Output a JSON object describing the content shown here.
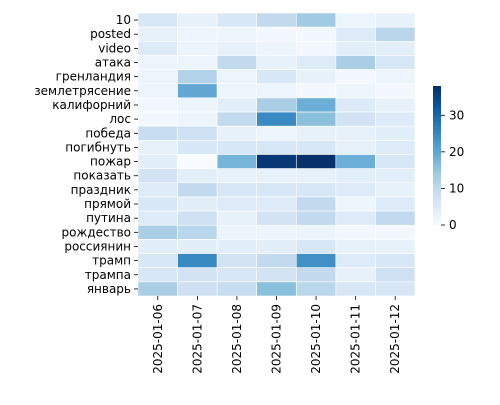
{
  "chart_data": {
    "type": "heatmap",
    "title": "",
    "xlabel": "",
    "ylabel": "",
    "x_categories": [
      "2025-01-06",
      "2025-01-07",
      "2025-01-08",
      "2025-01-09",
      "2025-01-10",
      "2025-01-11",
      "2025-01-12"
    ],
    "y_categories": [
      "10",
      "posted",
      "video",
      "атака",
      "гренландия",
      "землетрясение",
      "калифорний",
      "лос",
      "победа",
      "погибнуть",
      "пожар",
      "показать",
      "праздник",
      "прямой",
      "путина",
      "рождество",
      "россиянин",
      "трамп",
      "трампа",
      "январь"
    ],
    "values": [
      [
        6,
        3,
        6,
        10,
        14,
        2,
        3
      ],
      [
        3,
        2,
        2,
        1,
        1,
        5,
        11
      ],
      [
        5,
        2,
        3,
        2,
        1,
        4,
        4
      ],
      [
        2,
        2,
        10,
        3,
        5,
        13,
        6
      ],
      [
        2,
        12,
        2,
        6,
        3,
        1,
        2
      ],
      [
        2,
        20,
        2,
        2,
        1,
        2,
        1
      ],
      [
        1,
        2,
        4,
        13,
        19,
        5,
        3
      ],
      [
        1,
        2,
        10,
        25,
        16,
        7,
        5
      ],
      [
        9,
        8,
        3,
        2,
        3,
        3,
        4
      ],
      [
        3,
        6,
        6,
        6,
        6,
        3,
        5
      ],
      [
        4,
        0,
        18,
        37,
        38,
        19,
        6
      ],
      [
        7,
        4,
        3,
        3,
        3,
        4,
        4
      ],
      [
        5,
        10,
        6,
        6,
        6,
        5,
        3
      ],
      [
        6,
        4,
        5,
        5,
        10,
        2,
        5
      ],
      [
        5,
        8,
        3,
        7,
        10,
        5,
        10
      ],
      [
        13,
        11,
        2,
        2,
        2,
        1,
        1
      ],
      [
        4,
        4,
        4,
        4,
        6,
        3,
        3
      ],
      [
        6,
        25,
        7,
        10,
        24,
        5,
        6
      ],
      [
        6,
        7,
        6,
        7,
        10,
        3,
        8
      ],
      [
        13,
        8,
        9,
        16,
        11,
        6,
        6
      ]
    ],
    "vmin": 0,
    "vmax": 38,
    "colormap": "Blues",
    "cell_edge_color": "#ffffff",
    "colorbar": {
      "ticks": [
        0,
        10,
        20,
        30
      ],
      "placement": "right"
    }
  }
}
